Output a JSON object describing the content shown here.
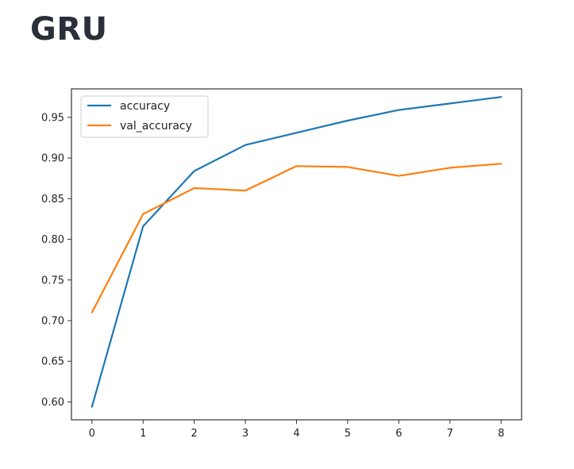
{
  "heading": "GRU",
  "chart_data": {
    "type": "line",
    "title": "",
    "xlabel": "",
    "ylabel": "",
    "x": [
      0,
      1,
      2,
      3,
      4,
      5,
      6,
      7,
      8
    ],
    "xticks": [
      "0",
      "1",
      "2",
      "3",
      "4",
      "5",
      "6",
      "7",
      "8"
    ],
    "yticks": [
      "0.60",
      "0.65",
      "0.70",
      "0.75",
      "0.80",
      "0.85",
      "0.90",
      "0.95"
    ],
    "xlim": [
      -0.4,
      8.4
    ],
    "ylim": [
      0.578,
      0.985
    ],
    "grid": false,
    "legend_position": "top-left",
    "series": [
      {
        "name": "accuracy",
        "color": "#1f77b4",
        "values": [
          0.594,
          0.816,
          0.884,
          0.916,
          0.931,
          0.946,
          0.959,
          0.967,
          0.975
        ]
      },
      {
        "name": "val_accuracy",
        "color": "#ff7f0e",
        "values": [
          0.71,
          0.831,
          0.863,
          0.86,
          0.89,
          0.889,
          0.878,
          0.888,
          0.893
        ]
      }
    ]
  }
}
